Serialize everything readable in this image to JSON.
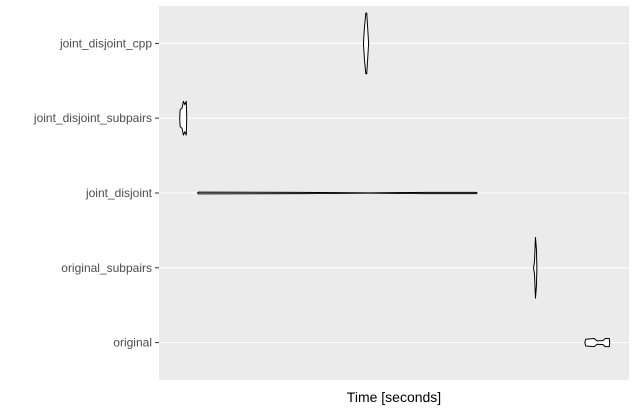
{
  "chart_data": {
    "type": "violin",
    "orientation": "horizontal",
    "xlabel": "Time [seconds]",
    "ylabel": "",
    "xlim": [
      0,
      1
    ],
    "grid": true,
    "legend": "none",
    "colors": {
      "panel": "#ebebeb",
      "grid": "#ffffff",
      "outline": "#000000",
      "fill": "#ffffff",
      "tick_label": "#4d4d4d"
    },
    "categories": [
      "joint_disjoint_cpp",
      "joint_disjoint_subpairs",
      "joint_disjoint",
      "original_subpairs",
      "original"
    ],
    "series": [
      {
        "category": "joint_disjoint_cpp",
        "profile": [
          [
            0.435,
            0
          ],
          [
            0.437,
            0.45
          ],
          [
            0.44,
            0.9
          ],
          [
            0.442,
            0.9
          ],
          [
            0.444,
            0.45
          ],
          [
            0.446,
            0
          ]
        ]
      },
      {
        "category": "joint_disjoint_subpairs",
        "profile": [
          [
            0.044,
            0
          ],
          [
            0.045,
            0.25
          ],
          [
            0.049,
            0.3
          ],
          [
            0.052,
            0.5
          ],
          [
            0.055,
            0.4
          ],
          [
            0.058,
            0.5
          ],
          [
            0.059,
            0
          ]
        ]
      },
      {
        "category": "joint_disjoint",
        "profile": [
          [
            0.082,
            0
          ],
          [
            0.084,
            0.025
          ],
          [
            0.3,
            0.02
          ],
          [
            0.45,
            0.005
          ],
          [
            0.57,
            0.02
          ],
          [
            0.675,
            0.02
          ],
          [
            0.677,
            0
          ]
        ]
      },
      {
        "category": "original_subpairs",
        "profile": [
          [
            0.797,
            0
          ],
          [
            0.799,
            0.2
          ],
          [
            0.801,
            0.9
          ],
          [
            0.803,
            0.55
          ],
          [
            0.804,
            0
          ]
        ]
      },
      {
        "category": "original",
        "profile": [
          [
            0.906,
            0
          ],
          [
            0.908,
            0.1
          ],
          [
            0.926,
            0.12
          ],
          [
            0.932,
            0.05
          ],
          [
            0.945,
            0.06
          ],
          [
            0.949,
            0.12
          ],
          [
            0.958,
            0.12
          ],
          [
            0.959,
            0
          ]
        ]
      }
    ]
  }
}
